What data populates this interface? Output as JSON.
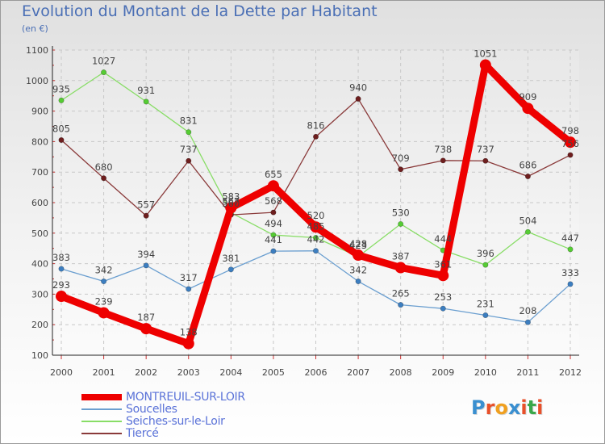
{
  "header": {
    "title": "Evolution du Montant de la Dette par Habitant",
    "subtitle": "(en €)"
  },
  "logo": {
    "text": "Proxiti",
    "letters": [
      "P",
      "r",
      "o",
      "x",
      "i",
      "t",
      "i"
    ],
    "colors": [
      "#3a8fd0",
      "#e8502a",
      "#f0a020",
      "#3a8fd0",
      "#e8502a",
      "#3aa84a",
      "#e8502a"
    ]
  },
  "chart_data": {
    "type": "line",
    "x": [
      "2000",
      "2001",
      "2002",
      "2003",
      "2004",
      "2005",
      "2006",
      "2007",
      "2008",
      "2009",
      "2010",
      "2011",
      "2012"
    ],
    "ylim": [
      100,
      1100
    ],
    "yticks": [
      "100",
      "200",
      "300",
      "400",
      "500",
      "600",
      "700",
      "800",
      "900",
      "1000",
      "1100"
    ],
    "grid": true,
    "legend_position": "bottom",
    "series": [
      {
        "name": "MONTREUIL-SUR-LOIR",
        "color": "#ee0000",
        "point_color": "#ee0000",
        "emphasis": true,
        "values": [
          293,
          239,
          187,
          138,
          583,
          655,
          520,
          428,
          387,
          361,
          1051,
          909,
          798
        ]
      },
      {
        "name": "Soucelles",
        "color": "#6b9fd0",
        "point_color": "#3c7ec0",
        "values": [
          383,
          342,
          394,
          317,
          381,
          441,
          442,
          342,
          265,
          253,
          231,
          208,
          333
        ]
      },
      {
        "name": "Seiches-sur-le-Loir",
        "color": "#88dd66",
        "point_color": "#55cc33",
        "values": [
          935,
          1027,
          931,
          831,
          567,
          494,
          485,
          423,
          530,
          444,
          396,
          504,
          447
        ]
      },
      {
        "name": "Tiercé",
        "color": "#8a3a3a",
        "point_color": "#6e1e1e",
        "values": [
          805,
          680,
          557,
          737,
          560,
          568,
          816,
          940,
          709,
          738,
          737,
          686,
          756
        ]
      }
    ]
  }
}
